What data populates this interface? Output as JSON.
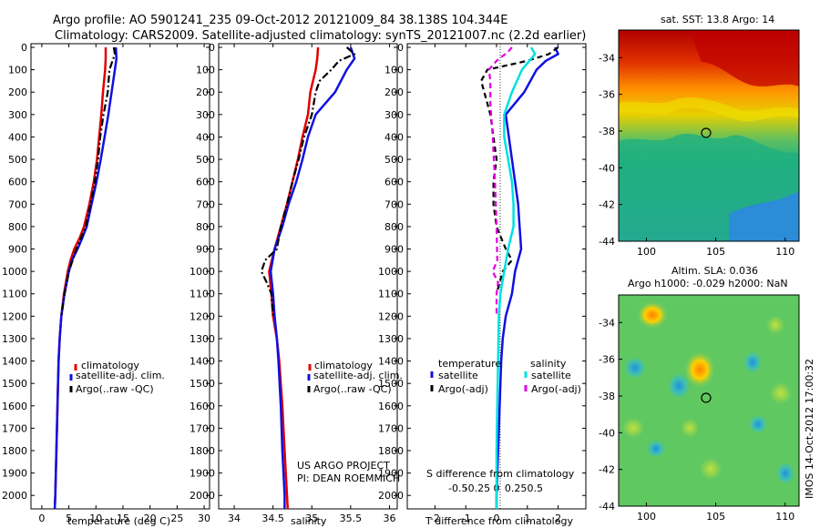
{
  "header": {
    "line1": "Argo profile: AO 5901241_235 09-Oct-2012 20121009_84 38.138S 104.344E",
    "line2": "Climatology: CARS2009. Satellite-adjusted climatology: synTS_20121007.nc (2.2d earlier)"
  },
  "depth_ticks": [
    0,
    100,
    200,
    300,
    400,
    500,
    600,
    700,
    800,
    900,
    1000,
    1100,
    1200,
    1300,
    1400,
    1500,
    1600,
    1700,
    1800,
    1900,
    2000
  ],
  "colors": {
    "climatology": "#e00000",
    "satellite": "#1010e0",
    "argo": "#000000",
    "sal_satellite": "#00e0e0",
    "sal_argo": "#e000e0"
  },
  "chart_data": [
    {
      "type": "line",
      "xlabel": "temperature (deg C)",
      "xlim": [
        -2,
        31
      ],
      "x_ticks": [
        0,
        5,
        10,
        15,
        20,
        25,
        30
      ],
      "ylim": [
        2070,
        -10
      ],
      "legend": {
        "placement": "lower-middle",
        "entries": [
          {
            "label": "climatology",
            "color": "#e00000"
          },
          {
            "label": "satellite-adj. clim.",
            "color": "#1010e0"
          },
          {
            "label": "Argo(..raw -QC)",
            "color": "#000000"
          }
        ]
      },
      "series": [
        {
          "key": "climatology",
          "color": "#e00000",
          "style": "solid",
          "depth": [
            0,
            50,
            100,
            200,
            300,
            400,
            500,
            600,
            700,
            800,
            850,
            900,
            950,
            1000,
            1100,
            1200,
            1300,
            1400,
            1600,
            1800,
            2000,
            2060
          ],
          "values": [
            11.8,
            11.8,
            11.7,
            11.3,
            11,
            10.6,
            10.2,
            9.6,
            8.8,
            7.8,
            7,
            6,
            5.3,
            4.8,
            4.1,
            3.6,
            3.3,
            3.1,
            2.9,
            2.7,
            2.5,
            2.4
          ]
        },
        {
          "key": "satellite",
          "color": "#1010e0",
          "style": "solid",
          "depth": [
            0,
            50,
            100,
            200,
            300,
            400,
            500,
            600,
            700,
            800,
            850,
            900,
            950,
            1000,
            1100,
            1200,
            1300,
            1400,
            1600,
            1800,
            2000,
            2060
          ],
          "values": [
            13.7,
            13.8,
            13.5,
            12.9,
            12.3,
            11.6,
            10.9,
            10.1,
            9.2,
            8.3,
            7.5,
            6.6,
            5.6,
            5,
            4.2,
            3.6,
            3.3,
            3.1,
            2.9,
            2.7,
            2.5,
            2.4
          ]
        },
        {
          "key": "argo",
          "color": "#000000",
          "style": "dashdot",
          "depth": [
            0,
            30,
            100,
            200,
            300,
            400,
            500,
            600,
            700,
            800,
            900,
            1000,
            1100,
            1200
          ],
          "values": [
            13.3,
            13.5,
            12.5,
            12.2,
            11.4,
            10.8,
            10.4,
            9.8,
            9,
            8.1,
            6.4,
            5,
            4.2,
            3.6
          ]
        }
      ]
    },
    {
      "type": "line",
      "xlabel": "salinity",
      "xlim": [
        33.8,
        36.1
      ],
      "x_ticks": [
        34,
        34.5,
        35,
        35.5,
        36
      ],
      "ylim": [
        2070,
        -10
      ],
      "legend": {
        "placement": "lower-middle",
        "entries": [
          {
            "label": "climatology",
            "color": "#e00000"
          },
          {
            "label": "satellite-adj. clim.",
            "color": "#1010e0"
          },
          {
            "label": "Argo(..raw -QC)",
            "color": "#000000"
          }
        ]
      },
      "annotation": [
        "US ARGO PROJECT",
        "PI: DEAN ROEMMICH"
      ],
      "series": [
        {
          "key": "climatology",
          "color": "#e00000",
          "style": "solid",
          "depth": [
            0,
            50,
            100,
            200,
            300,
            400,
            500,
            600,
            700,
            800,
            900,
            1000,
            1100,
            1200,
            1300,
            1400,
            1600,
            1800,
            2000,
            2060
          ],
          "values": [
            35.08,
            35.07,
            35.05,
            34.98,
            34.95,
            34.88,
            34.82,
            34.75,
            34.68,
            34.6,
            34.52,
            34.45,
            34.48,
            34.5,
            34.55,
            34.58,
            34.62,
            34.65,
            34.68,
            34.69
          ]
        },
        {
          "key": "satellite",
          "color": "#1010e0",
          "style": "solid",
          "depth": [
            0,
            50,
            100,
            200,
            300,
            400,
            500,
            600,
            700,
            800,
            900,
            1000,
            1100,
            1200,
            1300,
            1400,
            1600,
            1800,
            2000,
            2060
          ],
          "values": [
            35.5,
            35.55,
            35.45,
            35.3,
            35.05,
            34.95,
            34.88,
            34.8,
            34.7,
            34.62,
            34.52,
            34.47,
            34.5,
            34.52,
            34.55,
            34.57,
            34.6,
            34.62,
            34.65,
            34.65
          ]
        },
        {
          "key": "argo",
          "color": "#000000",
          "style": "dashdot",
          "depth": [
            0,
            30,
            60,
            100,
            150,
            200,
            300,
            400,
            500,
            600,
            700,
            800,
            900,
            950,
            1000,
            1050,
            1100,
            1200
          ],
          "values": [
            35.45,
            35.55,
            35.35,
            35.25,
            35.1,
            35.05,
            35.0,
            34.9,
            34.83,
            34.75,
            34.68,
            34.6,
            34.55,
            34.4,
            34.35,
            34.42,
            34.48,
            34.5
          ]
        }
      ]
    },
    {
      "type": "line",
      "xlabel": "T difference from climatology",
      "x2label": "S difference from climatology",
      "xlim": [
        -2.9,
        2.9
      ],
      "x_ticks": [
        -2,
        -1,
        0,
        1,
        2
      ],
      "x2_ticks": [
        -0.5,
        -0.25,
        0,
        0.25,
        0.5
      ],
      "ylim": [
        2070,
        -10
      ],
      "legend": {
        "placement": "lower-middle",
        "temperature_title": "temperature",
        "salinity_title": "salinity",
        "entries": [
          {
            "label": "satellite",
            "color": "#1010e0"
          },
          {
            "label": "Argo(-adj)",
            "color": "#000000"
          },
          {
            "label": "satellite",
            "color": "#00e0e0"
          },
          {
            "label": "Argo(-adj)",
            "color": "#e000e0"
          }
        ]
      },
      "series": [
        {
          "key": "t_satellite",
          "color": "#1010e0",
          "style": "solid",
          "depth": [
            0,
            30,
            60,
            100,
            200,
            300,
            400,
            500,
            600,
            700,
            800,
            900,
            1000,
            1100,
            1200,
            1300,
            1400,
            1600,
            1800,
            2000,
            2060
          ],
          "values": [
            1.9,
            2.0,
            1.6,
            1.3,
            0.9,
            0.3,
            0.4,
            0.5,
            0.6,
            0.7,
            0.75,
            0.8,
            0.6,
            0.5,
            0.3,
            0.2,
            0.15,
            0.1,
            0.05,
            0.0,
            0.0
          ]
        },
        {
          "key": "t_argo",
          "color": "#000000",
          "style": "dashed",
          "depth": [
            0,
            30,
            60,
            100,
            150,
            200,
            300,
            400,
            500,
            600,
            700,
            800,
            900,
            950,
            1000,
            1100
          ],
          "values": [
            2.0,
            1.7,
            1.0,
            -0.3,
            -0.5,
            -0.4,
            -0.2,
            -0.1,
            0.0,
            -0.1,
            -0.1,
            0.0,
            0.3,
            0.5,
            0.2,
            0.0
          ]
        },
        {
          "key": "s_satellite",
          "color": "#00e0e0",
          "style": "solid",
          "depth": [
            0,
            30,
            100,
            200,
            300,
            400,
            500,
            600,
            700,
            800,
            900,
            1000,
            1100,
            1200,
            1400,
            1600,
            1800,
            2000,
            2060
          ],
          "values": [
            0.45,
            0.5,
            0.33,
            0.2,
            0.1,
            0.1,
            0.15,
            0.2,
            0.22,
            0.22,
            0.15,
            0.1,
            0.05,
            0.03,
            0.02,
            0.01,
            0.0,
            0.0,
            0.0
          ]
        },
        {
          "key": "s_argo",
          "color": "#e000e0",
          "style": "dashed",
          "depth": [
            0,
            20,
            60,
            100,
            150,
            250,
            400,
            600,
            800,
            950,
            1000,
            1050,
            1100,
            1200
          ],
          "values": [
            0.2,
            0.15,
            0.0,
            -0.1,
            -0.08,
            -0.08,
            -0.05,
            -0.02,
            0.0,
            0.01,
            -0.05,
            0.02,
            0.0,
            0.0
          ]
        }
      ]
    }
  ],
  "maps": [
    {
      "title": "sat. SST: 13.8 Argo: 14",
      "xlim": [
        98,
        111
      ],
      "ylim": [
        -44,
        -32.5
      ],
      "x_ticks": [
        100,
        105,
        110
      ],
      "y_ticks": [
        -34,
        -36,
        -38,
        -40,
        -42,
        -44
      ],
      "marker": [
        104.3,
        -38.1
      ]
    },
    {
      "title1": "Altim. SLA: 0.036",
      "title2": "Argo h1000: -0.029 h2000: NaN",
      "xlim": [
        98,
        111
      ],
      "ylim": [
        -44,
        -32.5
      ],
      "x_ticks": [
        100,
        105,
        110
      ],
      "y_ticks": [
        -34,
        -36,
        -38,
        -40,
        -42,
        -44
      ],
      "marker": [
        104.3,
        -38.1
      ]
    }
  ],
  "footer_stamp": "IMOS 14-Oct-2012 17:00:32"
}
